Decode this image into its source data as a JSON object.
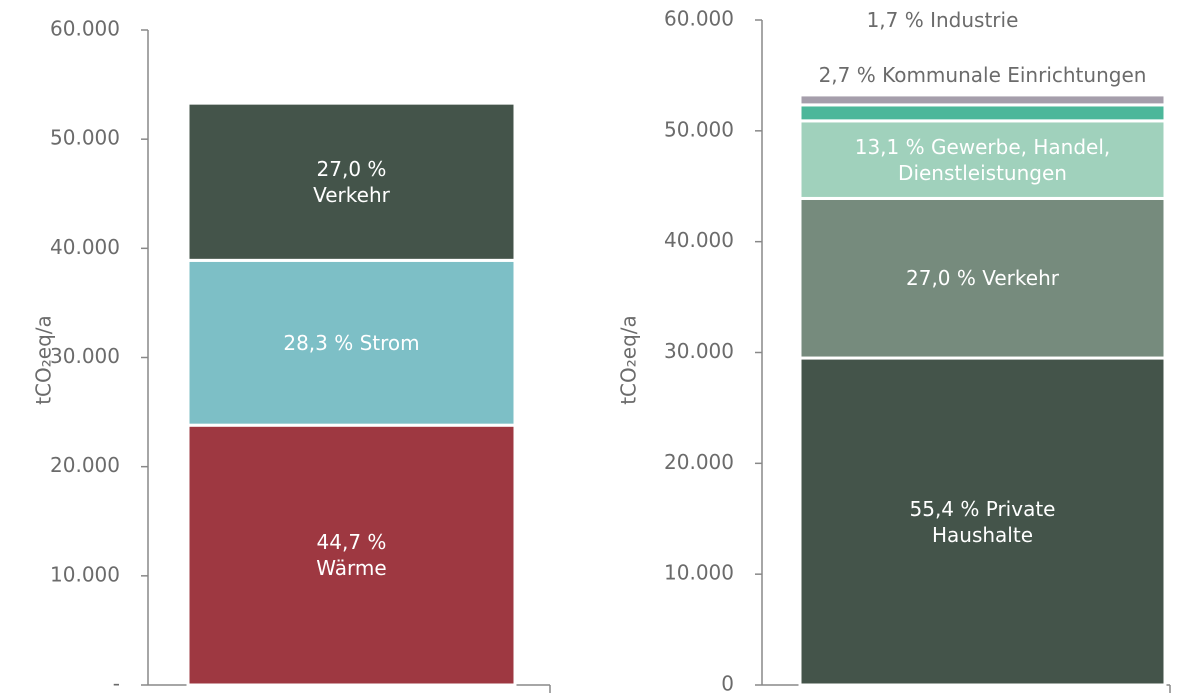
{
  "chart_data": [
    {
      "type": "bar",
      "stacked": true,
      "ylabel": "tCO₂eq/a",
      "ylim": [
        0,
        60000
      ],
      "yticks": [
        {
          "value": 0,
          "label": "-"
        },
        {
          "value": 10000,
          "label": "10.000"
        },
        {
          "value": 20000,
          "label": "20.000"
        },
        {
          "value": 30000,
          "label": "30.000"
        },
        {
          "value": 40000,
          "label": "40.000"
        },
        {
          "value": 50000,
          "label": "50.000"
        },
        {
          "value": 60000,
          "label": "60.000"
        }
      ],
      "series": [
        {
          "name": "44,7 % Wärme",
          "color": "#9e3841",
          "values": [
            23800
          ]
        },
        {
          "name": "28,3 % Strom",
          "color": "#7dbfc6",
          "values": [
            15100
          ]
        },
        {
          "name": "27,0 % Verkehr",
          "color": "#44544a",
          "values": [
            14400
          ]
        }
      ]
    },
    {
      "type": "bar",
      "stacked": true,
      "ylabel": "tCO₂eq/a",
      "ylim": [
        0,
        60000
      ],
      "yticks": [
        0,
        {
          "value": 10000,
          "label": "10.000"
        },
        {
          "value": 20000,
          "label": "20.000"
        },
        {
          "value": 30000,
          "label": "30.000"
        },
        {
          "value": 40000,
          "label": "40.000"
        },
        {
          "value": 50000,
          "label": "50.000"
        },
        {
          "value": 60000,
          "label": "60.000"
        }
      ],
      "series": [
        {
          "name": "55,4 % Private Haushalte",
          "color": "#44544a",
          "values": [
            29500
          ]
        },
        {
          "name": "27,0 % Verkehr",
          "color": "#768b7d",
          "values": [
            14400
          ]
        },
        {
          "name": "13,1 % Gewerbe, Handel, Dienstleistungen",
          "color": "#a0d1bc",
          "values": [
            7000
          ]
        },
        {
          "name": "2,7 % Kommunale Einrichtungen",
          "color": "#4cb79a",
          "values": [
            1440
          ]
        },
        {
          "name": "1,7 % Industrie",
          "color": "#a59eab",
          "values": [
            900
          ]
        }
      ]
    }
  ]
}
